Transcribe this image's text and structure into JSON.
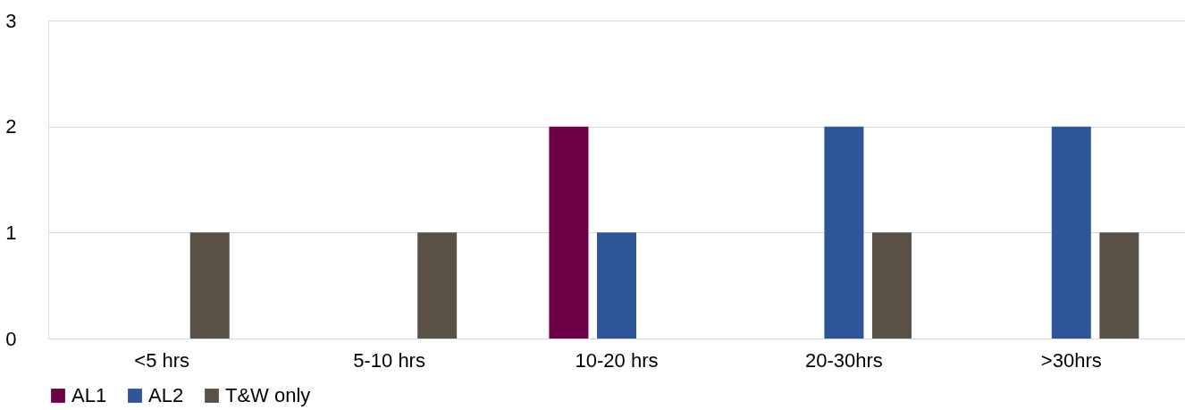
{
  "chart_data": {
    "type": "bar",
    "categories": [
      "<5 hrs",
      "5-10 hrs",
      "10-20 hrs",
      "20-30hrs",
      ">30hrs"
    ],
    "series": [
      {
        "name": "AL1",
        "color": "#6e0047",
        "values": [
          null,
          null,
          2,
          null,
          null
        ]
      },
      {
        "name": "AL2",
        "color": "#2e5597",
        "values": [
          null,
          null,
          1,
          2,
          2
        ]
      },
      {
        "name": "T&W only",
        "color": "#595146",
        "values": [
          1,
          1,
          null,
          1,
          1
        ]
      }
    ],
    "ylim": [
      0,
      3
    ],
    "yticks": [
      0,
      1,
      2,
      3
    ],
    "grid": "y",
    "legend": "bottom"
  }
}
